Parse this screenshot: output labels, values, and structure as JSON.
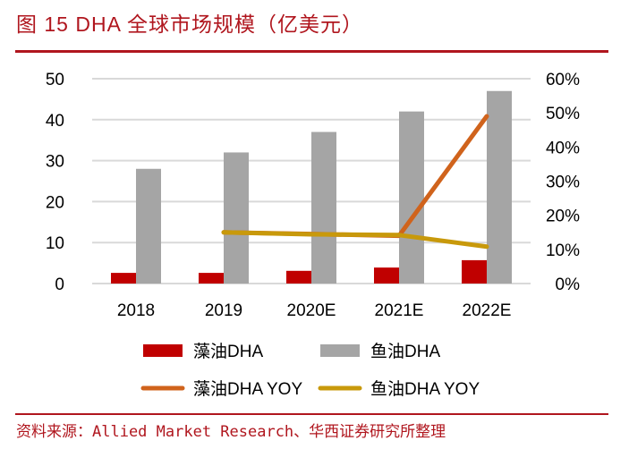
{
  "title": "图 15 DHA 全球市场规模（亿美元）",
  "source": "资料来源：Allied Market Research、华西证券研究所整理",
  "chart_data": {
    "type": "bar+line",
    "categories": [
      "2018",
      "2019",
      "2020E",
      "2021E",
      "2022E"
    ],
    "y_left": {
      "range": [
        0,
        50
      ],
      "ticks": [
        "0",
        "10",
        "20",
        "30",
        "40",
        "50"
      ]
    },
    "y_right": {
      "range": [
        0,
        60
      ],
      "ticks": [
        "0%",
        "10%",
        "20%",
        "30%",
        "40%",
        "50%",
        "60%"
      ]
    },
    "grid": true,
    "legend_placement": "bottom",
    "series": [
      {
        "name": "藻油DHA",
        "type": "bar",
        "axis": "left",
        "color": "#c00000",
        "values": [
          2.6,
          2.6,
          3.1,
          3.9,
          5.7
        ]
      },
      {
        "name": "鱼油DHA",
        "type": "bar",
        "axis": "left",
        "color": "#a5a5a5",
        "values": [
          28,
          32,
          37,
          42,
          47
        ]
      },
      {
        "name": "藻油DHA YOY",
        "type": "line",
        "axis": "right",
        "color": "#d0631c",
        "values": [
          null,
          15,
          14.5,
          14,
          49
        ]
      },
      {
        "name": "鱼油DHA YOY",
        "type": "line",
        "axis": "right",
        "color": "#c8990b",
        "values": [
          null,
          15,
          14.4,
          14.2,
          10.8
        ]
      }
    ]
  }
}
